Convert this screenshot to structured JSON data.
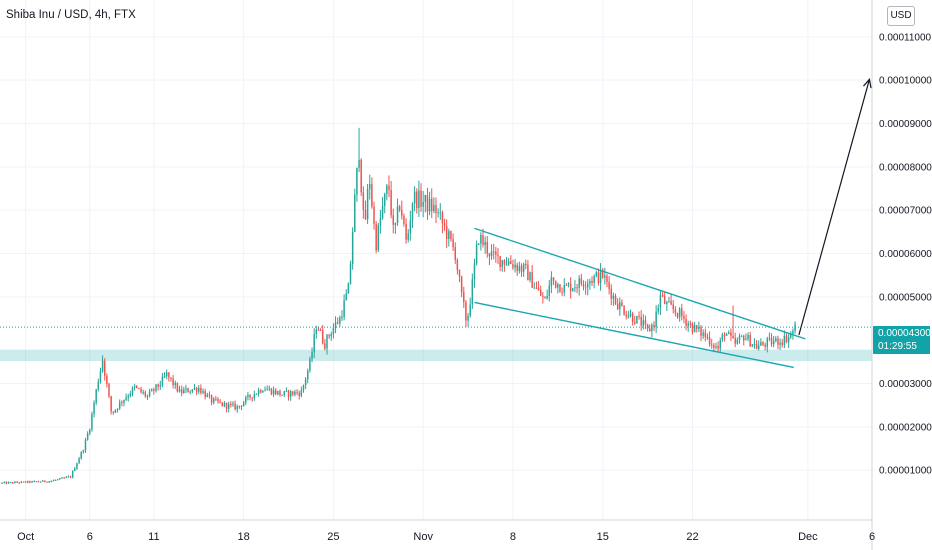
{
  "chart_data": {
    "type": "candlestick",
    "title": "Shiba Inu / USD, 4h, FTX",
    "currency": "USD",
    "y_ticks": [
      "0.00011000",
      "0.00010000",
      "0.00009000",
      "0.00008000",
      "0.00007000",
      "0.00006000",
      "0.00005000",
      "0.00003000",
      "0.00002000",
      "0.00001000"
    ],
    "y_tick_values": [
      0.00011,
      0.0001,
      9e-05,
      8e-05,
      7e-05,
      6e-05,
      5e-05,
      3e-05,
      2e-05,
      1e-05
    ],
    "ylim": [
      -1.5e-06,
      0.0001185
    ],
    "x_axis": {
      "start_day": -1,
      "end_day": 67
    },
    "x_ticks": [
      {
        "label": "Oct",
        "day": 1
      },
      {
        "label": "6",
        "day": 6
      },
      {
        "label": "11",
        "day": 11
      },
      {
        "label": "18",
        "day": 18
      },
      {
        "label": "25",
        "day": 25
      },
      {
        "label": "Nov",
        "day": 32
      },
      {
        "label": "8",
        "day": 39
      },
      {
        "label": "15",
        "day": 46
      },
      {
        "label": "22",
        "day": 53
      },
      {
        "label": "Dec",
        "day": 62
      },
      {
        "label": "6",
        "day": 67
      }
    ],
    "current_price": {
      "label": "0.00004300",
      "value": 4.3e-05,
      "countdown": "01:29:55"
    },
    "support_zone": [
      3.52e-05,
      3.78e-05
    ],
    "channel_upper": [
      [
        36.0,
        6.58e-05
      ],
      [
        61.8,
        4.03e-05
      ]
    ],
    "channel_lower": [
      [
        36.0,
        4.87e-05
      ],
      [
        60.9,
        3.37e-05
      ]
    ],
    "arrow": [
      [
        61.3,
        4.12e-05
      ],
      [
        66.8,
        0.0001002
      ]
    ],
    "price_path": [
      [
        -1,
        7e-06
      ],
      [
        3,
        7.5e-06
      ],
      [
        4.5,
        8.5e-06
      ],
      [
        5.5,
        1.5e-05
      ],
      [
        6,
        2e-05
      ],
      [
        6.6,
        3e-05
      ],
      [
        7,
        3.55e-05
      ],
      [
        7.7,
        2.3e-05
      ],
      [
        8.5,
        2.6e-05
      ],
      [
        9.5,
        2.9e-05
      ],
      [
        10.5,
        2.7e-05
      ],
      [
        11.5,
        3e-05
      ],
      [
        12,
        3.2e-05
      ],
      [
        13,
        2.8e-05
      ],
      [
        14.5,
        2.9e-05
      ],
      [
        15.5,
        2.6e-05
      ],
      [
        16.5,
        2.5e-05
      ],
      [
        17.5,
        2.45e-05
      ],
      [
        18.5,
        2.7e-05
      ],
      [
        19.5,
        2.9e-05
      ],
      [
        21,
        2.75e-05
      ],
      [
        22.5,
        2.8e-05
      ],
      [
        23.2,
        3.5e-05
      ],
      [
        23.7,
        4.4e-05
      ],
      [
        24.3,
        3.9e-05
      ],
      [
        24.8,
        4.2e-05
      ],
      [
        25.5,
        4.5e-05
      ],
      [
        26.2,
        5.2e-05
      ],
      [
        26.6,
        7e-05
      ],
      [
        27,
        8.4e-05
      ],
      [
        27.4,
        6.5e-05
      ],
      [
        27.8,
        7.8e-05
      ],
      [
        28.3,
        6.2e-05
      ],
      [
        28.8,
        7e-05
      ],
      [
        29.3,
        7.6e-05
      ],
      [
        29.7,
        6.4e-05
      ],
      [
        30.2,
        7.2e-05
      ],
      [
        30.7,
        6.2e-05
      ],
      [
        31.2,
        7.3e-05
      ],
      [
        32,
        7.2e-05
      ],
      [
        33,
        7e-05
      ],
      [
        33.8,
        6.5e-05
      ],
      [
        34.5,
        6e-05
      ],
      [
        35,
        5e-05
      ],
      [
        35.4,
        4.4e-05
      ],
      [
        35.8,
        5.2e-05
      ],
      [
        36.3,
        6.4e-05
      ],
      [
        37.5,
        5.9e-05
      ],
      [
        38.8,
        5.8e-05
      ],
      [
        40,
        5.6e-05
      ],
      [
        41,
        5.1e-05
      ],
      [
        41.5,
        4.9e-05
      ],
      [
        42,
        5.4e-05
      ],
      [
        43,
        5.2e-05
      ],
      [
        44,
        5.3e-05
      ],
      [
        45,
        5.4e-05
      ],
      [
        46,
        5.5e-05
      ],
      [
        47,
        4.9e-05
      ],
      [
        48,
        4.6e-05
      ],
      [
        49,
        4.4e-05
      ],
      [
        49.5,
        4.2e-05
      ],
      [
        50,
        4.4e-05
      ],
      [
        50.5,
        5e-05
      ],
      [
        51,
        4.8e-05
      ],
      [
        52,
        4.6e-05
      ],
      [
        53,
        4.3e-05
      ],
      [
        54,
        4.1e-05
      ],
      [
        55,
        3.8e-05
      ],
      [
        55.5,
        4.2e-05
      ],
      [
        56.3,
        3.9e-05
      ],
      [
        57,
        4.1e-05
      ],
      [
        58,
        3.85e-05
      ],
      [
        59,
        3.95e-05
      ],
      [
        60,
        4e-05
      ],
      [
        60.6,
        4.1e-05
      ],
      [
        61,
        4.3e-05
      ]
    ],
    "spikes": [
      [
        7,
        3.65e-05
      ],
      [
        27,
        8.9e-05
      ],
      [
        35.4,
        4.3e-05
      ],
      [
        56.2,
        4.8e-05
      ]
    ],
    "colors": {
      "up": "#26a69a",
      "down": "#ef5350",
      "channel": "#19a7b3",
      "zone": "#12a3a8",
      "arrow": "#131722",
      "grid": "#f0f3fa",
      "axis_text": "#131722",
      "price_line": "#12a3a8"
    }
  }
}
